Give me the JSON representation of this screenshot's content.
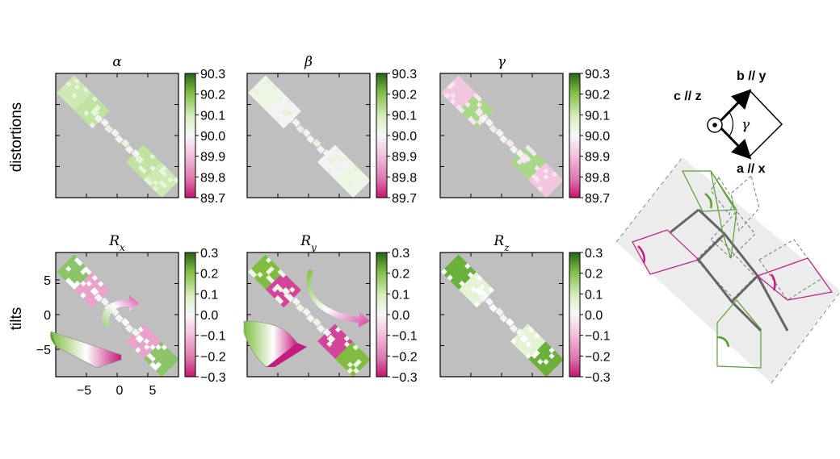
{
  "chart_data": [
    {
      "type": "heatmap",
      "title": "α",
      "row_label": "distortions",
      "colorbar": {
        "ticks": [
          "90.3",
          "90.2",
          "90.1",
          "90.0",
          "89.9",
          "89.8",
          "89.7"
        ],
        "range": [
          89.7,
          90.3
        ]
      }
    },
    {
      "type": "heatmap",
      "title": "β",
      "colorbar": {
        "ticks": [
          "90.3",
          "90.2",
          "90.1",
          "90.0",
          "89.9",
          "89.8",
          "89.7"
        ],
        "range": [
          89.7,
          90.3
        ]
      }
    },
    {
      "type": "heatmap",
      "title": "γ",
      "colorbar": {
        "ticks": [
          "90.3",
          "90.2",
          "90.1",
          "90.0",
          "89.9",
          "89.8",
          "89.7"
        ],
        "range": [
          89.7,
          90.3
        ]
      }
    },
    {
      "type": "heatmap",
      "title": "R",
      "title_sub": "x",
      "row_label": "tilts",
      "yticks": [
        "5",
        "0",
        "−5"
      ],
      "xticks": [
        "−5",
        "0",
        "5"
      ],
      "colorbar": {
        "ticks": [
          "0.3",
          "0.2",
          "0.1",
          "0.0",
          "−0.1",
          "−0.2",
          "−0.3"
        ],
        "range": [
          -0.3,
          0.3
        ]
      }
    },
    {
      "type": "heatmap",
      "title": "R",
      "title_sub": "y",
      "colorbar": {
        "ticks": [
          "0.3",
          "0.2",
          "0.1",
          "0.0",
          "−0.1",
          "−0.2",
          "−0.3"
        ],
        "range": [
          -0.3,
          0.3
        ]
      }
    },
    {
      "type": "heatmap",
      "title": "R",
      "title_sub": "z",
      "colorbar": {
        "ticks": [
          "0.3",
          "0.2",
          "0.1",
          "0.0",
          "−0.1",
          "−0.2",
          "−0.3"
        ],
        "range": [
          -0.3,
          0.3
        ]
      }
    }
  ],
  "row_labels": {
    "top": "distortions",
    "bottom": "tilts"
  },
  "axes_diagram": {
    "c_label": "c // z",
    "b_label": "b // y",
    "a_label": "a // x",
    "angle_label": "γ"
  },
  "colors": {
    "background": "#bfbfbf",
    "green": "#3f8f1f",
    "magenta": "#c51b7d",
    "axis_gray": "#555555"
  }
}
